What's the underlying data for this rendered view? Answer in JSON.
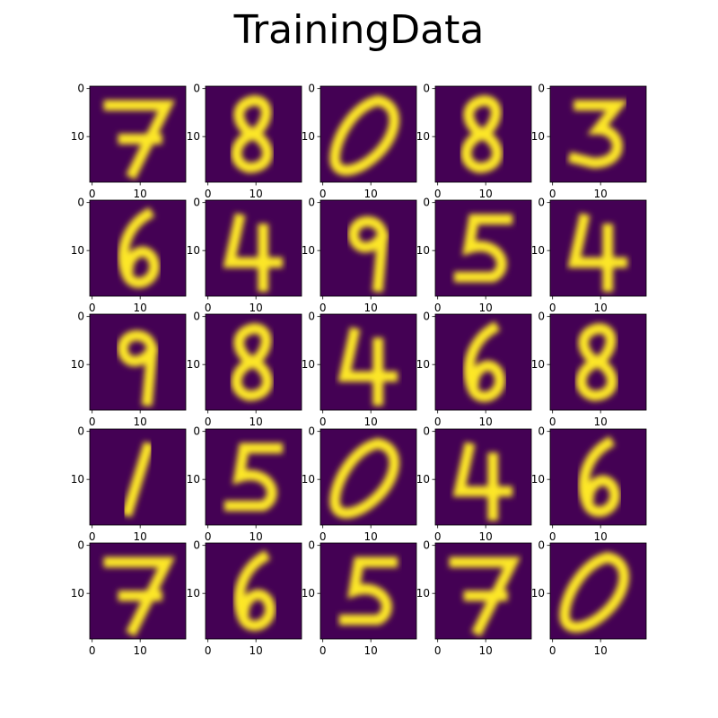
{
  "title": "TrainingData",
  "chart_data": {
    "type": "heatmap",
    "title": "TrainingData",
    "colormap": "viridis",
    "image_size": [
      20,
      20
    ],
    "xticks": [
      "0",
      "10"
    ],
    "yticks": [
      "0",
      "10"
    ],
    "grid_rows": 5,
    "grid_cols": 5,
    "digits": [
      [
        7,
        8,
        0,
        8,
        3
      ],
      [
        6,
        4,
        9,
        5,
        4
      ],
      [
        9,
        8,
        4,
        6,
        8
      ],
      [
        1,
        5,
        0,
        4,
        6
      ],
      [
        7,
        6,
        5,
        7,
        0
      ]
    ]
  }
}
